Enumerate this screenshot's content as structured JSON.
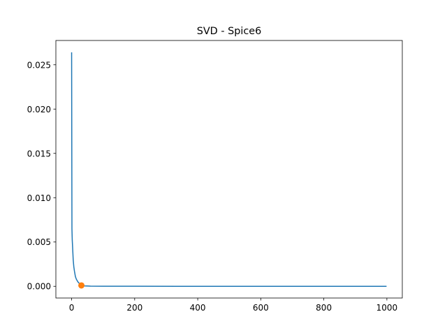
{
  "chart_data": {
    "type": "line",
    "title": "SVD - Spice6",
    "series": [
      {
        "color": "#1f77b4",
        "style": "line",
        "x": [
          0,
          1,
          2,
          3,
          5,
          7,
          9,
          12,
          15,
          20,
          25,
          31,
          40,
          60,
          100,
          200,
          400,
          600,
          800,
          999
        ],
        "values": [
          0.0264,
          0.0065,
          0.0052,
          0.0045,
          0.003,
          0.0022,
          0.0017,
          0.0011,
          0.0008,
          0.0005,
          0.0003,
          0.0001,
          5e-05,
          2e-05,
          1e-05,
          5e-06,
          0,
          0,
          0,
          0
        ]
      },
      {
        "color": "#ff7f0e",
        "style": "marker",
        "x": [
          31
        ],
        "values": [
          0.0001
        ]
      }
    ],
    "xlim": [
      -49.95,
      1048.95
    ],
    "xticks": [
      0,
      200,
      400,
      600,
      800,
      1000
    ],
    "ylim": [
      -0.00132,
      0.02774
    ],
    "yticks": [
      {
        "value": 0,
        "label": "0.000"
      },
      {
        "value": 0.005,
        "label": "0.005"
      },
      {
        "value": 0.01,
        "label": "0.010"
      },
      {
        "value": 0.015,
        "label": "0.015"
      },
      {
        "value": 0.02,
        "label": "0.020"
      },
      {
        "value": 0.025,
        "label": "0.025"
      }
    ],
    "grid": false
  }
}
